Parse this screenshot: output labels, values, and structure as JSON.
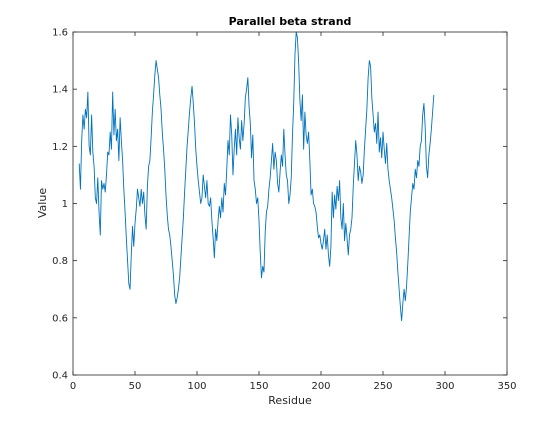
{
  "chart_data": {
    "type": "line",
    "title": "Parallel beta strand",
    "xlabel": "Residue",
    "ylabel": "Value",
    "xlim": [
      0,
      350
    ],
    "ylim": [
      0.4,
      1.6
    ],
    "xticks": [
      0,
      50,
      100,
      150,
      200,
      250,
      300,
      350
    ],
    "yticks": [
      0.4,
      0.6,
      0.8,
      1,
      1.2,
      1.4,
      1.6
    ],
    "xtick_labels": [
      "0",
      "50",
      "100",
      "150",
      "200",
      "250",
      "300",
      "350"
    ],
    "ytick_labels": [
      "0.4",
      "0.6",
      "0.8",
      "1",
      "1.2",
      "1.4",
      "1.6"
    ],
    "grid": false,
    "line_color": "#0072BD",
    "series": [
      {
        "x_start": 5,
        "x_step": 1,
        "values": [
          1.14,
          1.05,
          1.22,
          1.31,
          1.26,
          1.33,
          1.3,
          1.39,
          1.2,
          1.17,
          1.31,
          1.18,
          1.13,
          1.02,
          1.0,
          1.09,
          0.97,
          0.89,
          1.08,
          1.05,
          1.07,
          1.04,
          1.1,
          1.18,
          1.17,
          1.25,
          1.19,
          1.39,
          1.24,
          1.33,
          1.22,
          1.26,
          1.15,
          1.3,
          1.22,
          1.15,
          1.05,
          0.97,
          0.88,
          0.8,
          0.72,
          0.7,
          0.82,
          0.92,
          0.85,
          0.93,
          0.98,
          1.05,
          1.02,
          0.99,
          1.05,
          1.0,
          1.04,
          0.96,
          0.91,
          1.06,
          1.13,
          1.15,
          1.23,
          1.32,
          1.38,
          1.45,
          1.5,
          1.47,
          1.44,
          1.38,
          1.33,
          1.25,
          1.19,
          1.12,
          1.03,
          0.96,
          0.91,
          0.89,
          0.85,
          0.8,
          0.75,
          0.68,
          0.65,
          0.67,
          0.7,
          0.74,
          0.81,
          0.88,
          0.95,
          1.04,
          1.12,
          1.2,
          1.26,
          1.32,
          1.37,
          1.41,
          1.35,
          1.28,
          1.19,
          1.13,
          1.08,
          1.04,
          1.0,
          1.02,
          1.1,
          1.06,
          1.02,
          1.08,
          1.0,
          0.99,
          1.02,
          0.94,
          0.88,
          0.81,
          0.91,
          0.87,
          0.94,
          0.99,
          0.95,
          1.02,
          0.97,
          1.07,
          1.03,
          1.12,
          1.22,
          1.17,
          1.31,
          1.24,
          1.1,
          1.19,
          1.26,
          1.17,
          1.3,
          1.23,
          1.19,
          1.29,
          1.22,
          1.28,
          1.37,
          1.4,
          1.44,
          1.34,
          1.28,
          1.16,
          1.24,
          1.08,
          1.05,
          1.0,
          1.02,
          0.94,
          0.83,
          0.74,
          0.78,
          0.76,
          0.9,
          0.97,
          0.99,
          1.05,
          1.09,
          1.15,
          1.21,
          1.12,
          1.18,
          1.15,
          1.07,
          1.04,
          1.11,
          1.17,
          1.13,
          1.26,
          1.17,
          1.1,
          1.08,
          1.0,
          1.03,
          1.09,
          1.24,
          1.35,
          1.52,
          1.6,
          1.58,
          1.49,
          1.36,
          1.29,
          1.38,
          1.19,
          1.32,
          1.24,
          1.21,
          1.25,
          1.15,
          1.03,
          1.05,
          1.0,
          0.99,
          0.97,
          0.92,
          0.88,
          0.89,
          0.86,
          0.84,
          0.87,
          0.91,
          0.84,
          0.89,
          0.82,
          0.78,
          0.85,
          1.04,
          0.95,
          1.03,
          0.98,
          1.06,
          1.01,
          1.08,
          0.95,
          0.91,
          1.0,
          0.87,
          0.93,
          0.88,
          0.82,
          0.89,
          0.91,
          0.95,
          1.06,
          1.14,
          1.22,
          1.17,
          1.08,
          1.13,
          1.11,
          1.07,
          1.1,
          1.19,
          1.26,
          1.33,
          1.44,
          1.5,
          1.48,
          1.37,
          1.31,
          1.25,
          1.28,
          1.21,
          1.32,
          1.18,
          1.23,
          1.16,
          1.25,
          1.19,
          1.14,
          1.21,
          1.12,
          1.08,
          1.05,
          1.02,
          0.98,
          0.94,
          0.88,
          0.83,
          0.76,
          0.7,
          0.64,
          0.59,
          0.65,
          0.7,
          0.66,
          0.71,
          0.79,
          0.88,
          0.97,
          1.02,
          1.07,
          1.05,
          1.12,
          1.09,
          1.15,
          1.13,
          1.2,
          1.22,
          1.31,
          1.35,
          1.27,
          1.13,
          1.09,
          1.17,
          1.21,
          1.26,
          1.32,
          1.38
        ]
      }
    ]
  }
}
